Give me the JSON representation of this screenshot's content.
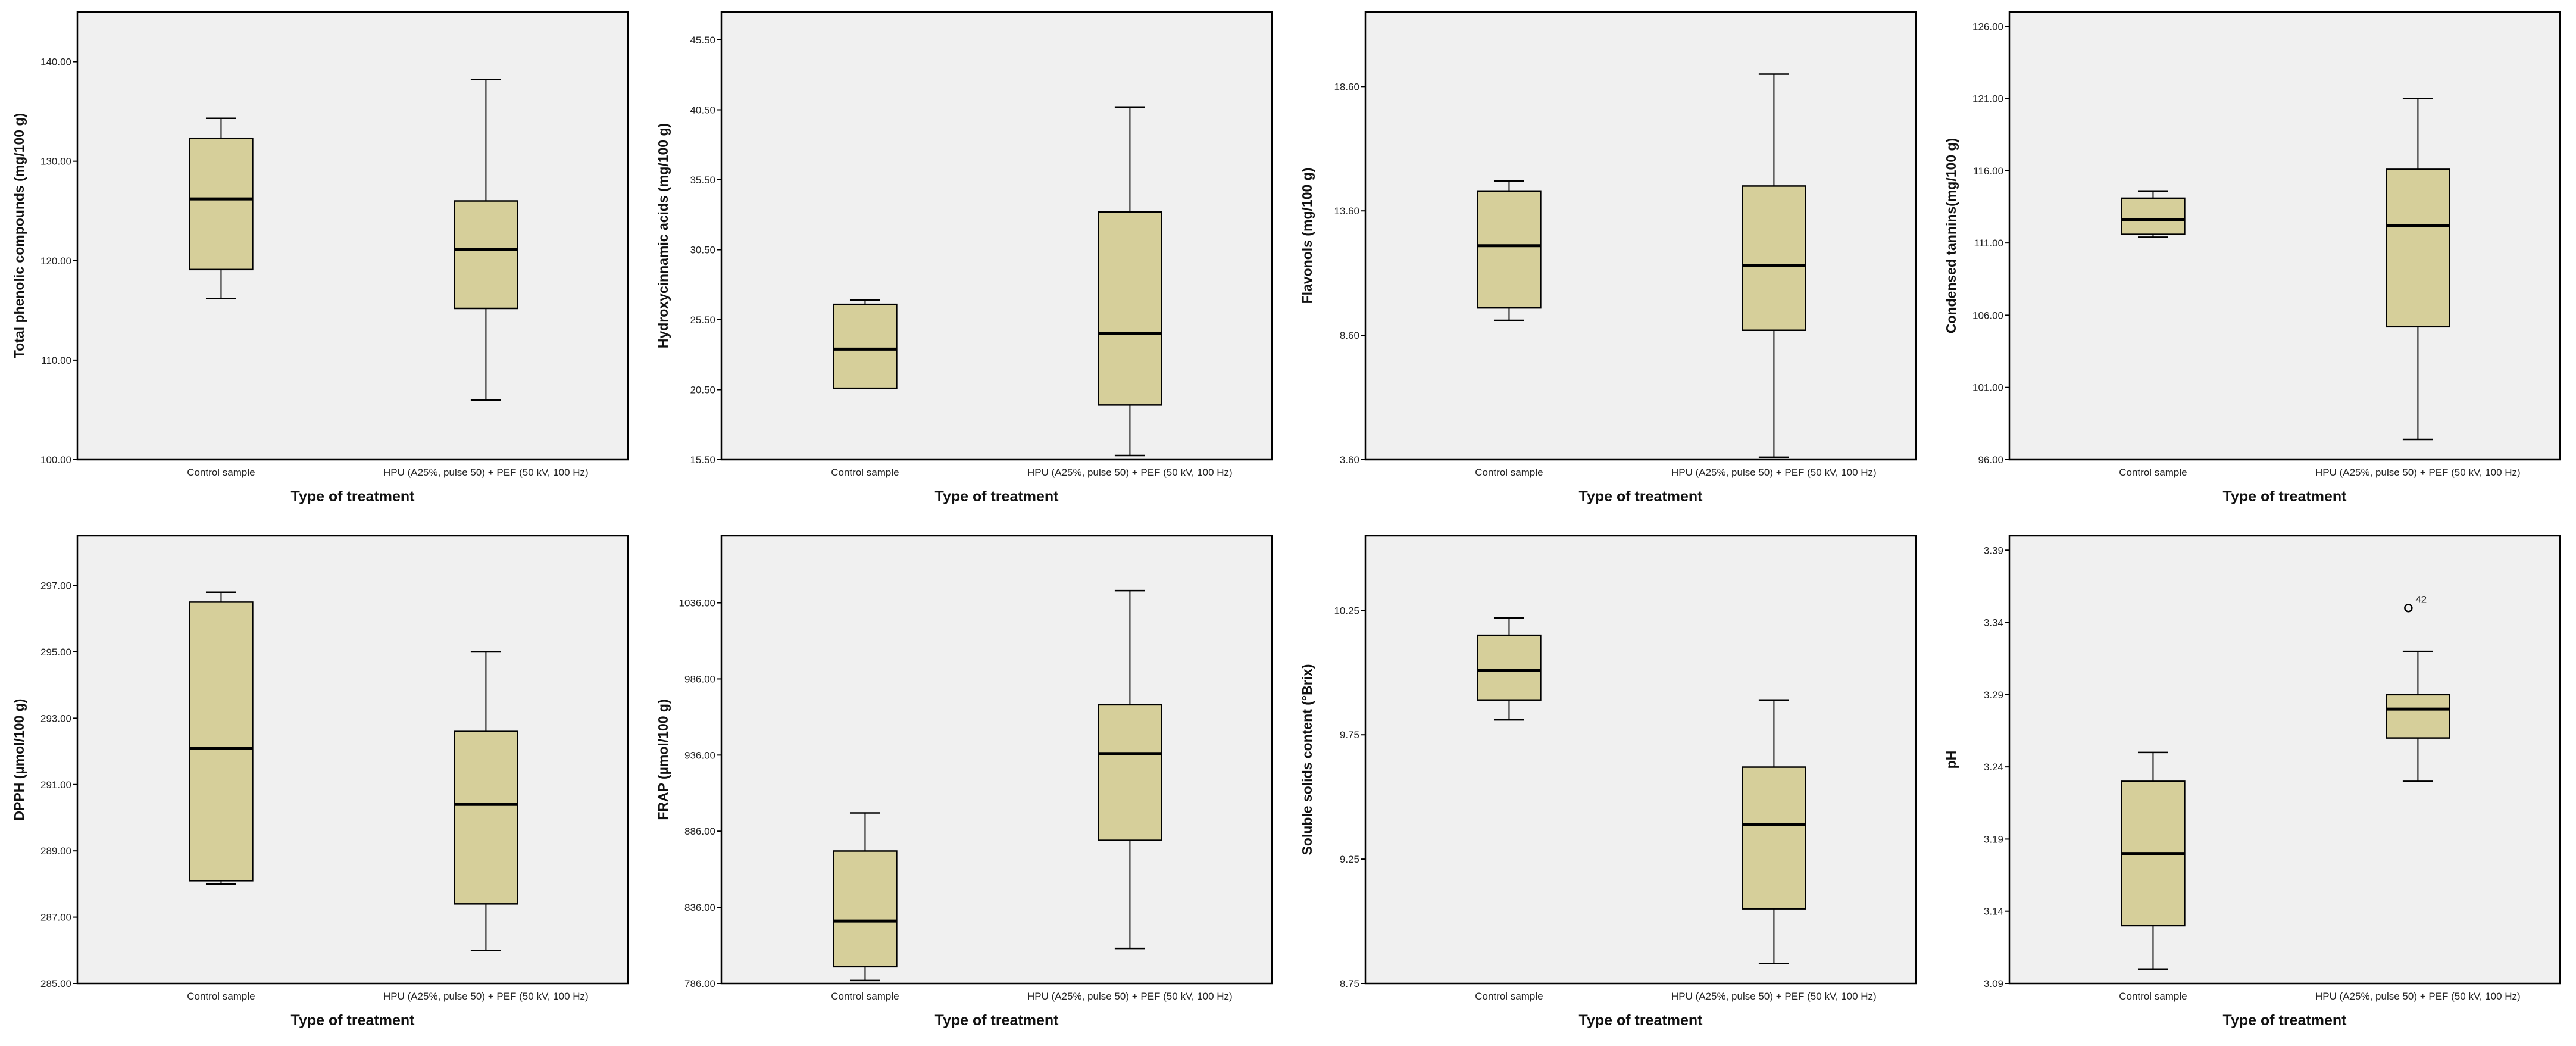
{
  "colors": {
    "box_fill": "#d6cf9a",
    "plot_bg": "#f0f0f0",
    "stroke": "#000000",
    "whisker": "#555555"
  },
  "chart_data": [
    {
      "type": "boxplot",
      "xlabel": "Type of treatment",
      "ylabel": "Total phenolic compounds (mg/100 g)",
      "ylim": [
        100,
        145
      ],
      "yticks": [
        100,
        110,
        120,
        130,
        140
      ],
      "ytick_labels": [
        "100.00",
        "110.00",
        "120.00",
        "130.00",
        "140.00"
      ],
      "categories": [
        "Control sample",
        "HPU (A25%, pulse 50) + PEF (50 kV, 100 Hz)"
      ],
      "boxes": [
        {
          "min": 116.2,
          "q1": 119.1,
          "median": 126.2,
          "q3": 132.3,
          "max": 134.3
        },
        {
          "min": 106.0,
          "q1": 115.2,
          "median": 121.1,
          "q3": 126.0,
          "max": 138.2
        }
      ],
      "outliers": []
    },
    {
      "type": "boxplot",
      "xlabel": "Type of treatment",
      "ylabel": "Hydroxycinnamic acids (mg/100 g)",
      "ylim": [
        15.5,
        47.5
      ],
      "yticks": [
        15.5,
        20.5,
        25.5,
        30.5,
        35.5,
        40.5,
        45.5
      ],
      "ytick_labels": [
        "15.50",
        "20.50",
        "25.50",
        "30.50",
        "35.50",
        "40.50",
        "45.50"
      ],
      "categories": [
        "Control sample",
        "HPU (A25%, pulse 50) + PEF (50 kV, 100 Hz)"
      ],
      "boxes": [
        {
          "min": 20.6,
          "q1": 20.6,
          "median": 23.4,
          "q3": 26.6,
          "max": 26.9
        },
        {
          "min": 15.8,
          "q1": 19.4,
          "median": 24.5,
          "q3": 33.2,
          "max": 40.7
        }
      ],
      "outliers": []
    },
    {
      "type": "boxplot",
      "xlabel": "Type of treatment",
      "ylabel": "Flavonols (mg/100 g)",
      "ylim": [
        3.6,
        21.6
      ],
      "yticks": [
        3.6,
        8.6,
        13.6,
        18.6
      ],
      "ytick_labels": [
        "3.60",
        "8.60",
        "13.60",
        "18.60"
      ],
      "categories": [
        "Control sample",
        "HPU (A25%, pulse 50) + PEF (50 kV, 100 Hz)"
      ],
      "boxes": [
        {
          "min": 9.2,
          "q1": 9.7,
          "median": 12.2,
          "q3": 14.4,
          "max": 14.8
        },
        {
          "min": 3.7,
          "q1": 8.8,
          "median": 11.4,
          "q3": 14.6,
          "max": 19.1
        }
      ],
      "outliers": []
    },
    {
      "type": "boxplot",
      "xlabel": "Type of treatment",
      "ylabel": "Condensed tannins(mg/100 g)",
      "ylim": [
        96,
        127
      ],
      "yticks": [
        96,
        101,
        106,
        111,
        116,
        121,
        126
      ],
      "ytick_labels": [
        "96.00",
        "101.00",
        "106.00",
        "111.00",
        "116.00",
        "121.00",
        "126.00"
      ],
      "categories": [
        "Control sample",
        "HPU (A25%, pulse 50) + PEF (50 kV, 100 Hz)"
      ],
      "boxes": [
        {
          "min": 111.4,
          "q1": 111.6,
          "median": 112.6,
          "q3": 114.1,
          "max": 114.6
        },
        {
          "min": 97.4,
          "q1": 105.2,
          "median": 112.2,
          "q3": 116.1,
          "max": 121.0
        }
      ],
      "outliers": []
    },
    {
      "type": "boxplot",
      "xlabel": "Type of treatment",
      "ylabel": "DPPH (µmol/100 g)",
      "ylim": [
        285,
        298.5
      ],
      "yticks": [
        285,
        287,
        289,
        291,
        293,
        295,
        297
      ],
      "ytick_labels": [
        "285.00",
        "287.00",
        "289.00",
        "291.00",
        "293.00",
        "295.00",
        "297.00"
      ],
      "categories": [
        "Control sample",
        "HPU (A25%, pulse 50) + PEF (50 kV, 100 Hz)"
      ],
      "boxes": [
        {
          "min": 288.0,
          "q1": 288.1,
          "median": 292.1,
          "q3": 296.5,
          "max": 296.8
        },
        {
          "min": 286.0,
          "q1": 287.4,
          "median": 290.4,
          "q3": 292.6,
          "max": 295.0
        }
      ],
      "outliers": []
    },
    {
      "type": "boxplot",
      "xlabel": "Type of treatment",
      "ylabel": "FRAP (µmol/100 g)",
      "ylim": [
        786,
        1080
      ],
      "yticks": [
        786,
        836,
        886,
        936,
        986,
        1036
      ],
      "ytick_labels": [
        "786.00",
        "836.00",
        "886.00",
        "936.00",
        "986.00",
        "1036.00"
      ],
      "categories": [
        "Control sample",
        "HPU (A25%, pulse 50) + PEF (50 kV, 100 Hz)"
      ],
      "boxes": [
        {
          "min": 788,
          "q1": 797,
          "median": 827,
          "q3": 873,
          "max": 898
        },
        {
          "min": 809,
          "q1": 880,
          "median": 937,
          "q3": 969,
          "max": 1044
        }
      ],
      "outliers": []
    },
    {
      "type": "boxplot",
      "xlabel": "Type of treatment",
      "ylabel": "Soluble solids content (°Brix)",
      "ylim": [
        8.75,
        10.55
      ],
      "yticks": [
        8.75,
        9.25,
        9.75,
        10.25
      ],
      "ytick_labels": [
        "8.75",
        "9.25",
        "9.75",
        "10.25"
      ],
      "categories": [
        "Control sample",
        "HPU (A25%, pulse 50) + PEF (50 kV, 100 Hz)"
      ],
      "boxes": [
        {
          "min": 9.81,
          "q1": 9.89,
          "median": 10.01,
          "q3": 10.15,
          "max": 10.22
        },
        {
          "min": 8.83,
          "q1": 9.05,
          "median": 9.39,
          "q3": 9.62,
          "max": 9.89
        }
      ],
      "outliers": []
    },
    {
      "type": "boxplot",
      "xlabel": "Type of treatment",
      "ylabel": "pH",
      "ylim": [
        3.09,
        3.4
      ],
      "yticks": [
        3.09,
        3.14,
        3.19,
        3.24,
        3.29,
        3.34,
        3.39
      ],
      "ytick_labels": [
        "3.09",
        "3.14",
        "3.19",
        "3.24",
        "3.29",
        "3.34",
        "3.39"
      ],
      "categories": [
        "Control sample",
        "HPU (A25%, pulse 50) + PEF (50 kV, 100 Hz)"
      ],
      "boxes": [
        {
          "min": 3.1,
          "q1": 3.13,
          "median": 3.18,
          "q3": 3.23,
          "max": 3.25
        },
        {
          "min": 3.23,
          "q1": 3.26,
          "median": 3.28,
          "q3": 3.29,
          "max": 3.32
        }
      ],
      "outliers": [
        {
          "category": 1,
          "value": 3.35,
          "label": "42"
        }
      ]
    }
  ]
}
